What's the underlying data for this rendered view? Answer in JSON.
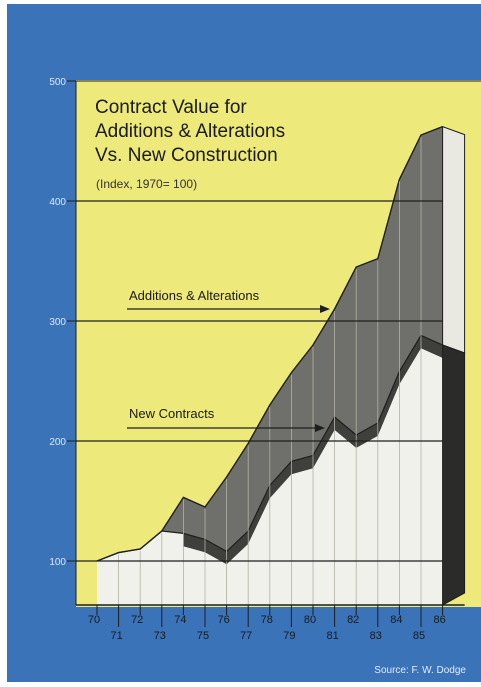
{
  "chart_data": {
    "type": "area",
    "title": "Contract Value for Additions & Alterations Vs. New Construction",
    "title_lines": [
      "Contract Value for",
      "Additions & Alterations",
      "Vs. New Construction"
    ],
    "subtitle": "(Index, 1970= 100)",
    "source": "Source: F. W. Dodge",
    "y_ticks": [
      "100",
      "200",
      "300",
      "400",
      "500"
    ],
    "ylim": [
      75,
      500
    ],
    "x_labels_top": [
      "70",
      "72",
      "74",
      "76",
      "78",
      "80",
      "82",
      "84",
      "86"
    ],
    "x_labels_bottom": [
      "71",
      "73",
      "75",
      "77",
      "79",
      "81",
      "83",
      "85"
    ],
    "x": [
      70,
      71,
      72,
      73,
      74,
      75,
      76,
      77,
      78,
      79,
      80,
      81,
      82,
      83,
      84,
      85,
      86
    ],
    "series": [
      {
        "name": "Additions & Alterations",
        "values": [
          100,
          107,
          110,
          125,
          153,
          145,
          170,
          198,
          230,
          257,
          280,
          310,
          345,
          352,
          418,
          455,
          462
        ]
      },
      {
        "name": "New Contracts",
        "values": [
          100,
          107,
          110,
          125,
          123,
          118,
          108,
          125,
          163,
          183,
          188,
          220,
          205,
          215,
          258,
          288,
          280
        ]
      }
    ],
    "annotations": [
      {
        "text": "Additions & Alterations",
        "points_to": "Additions & Alterations"
      },
      {
        "text": "New Contracts",
        "points_to": "New Contracts"
      }
    ],
    "colors": {
      "background": "#3a73b8",
      "plot": "#ede97a",
      "additions": "#6f6f6c",
      "new_contracts": "#f1f1ec",
      "shadow": "#2b2b29",
      "stripe": "#b3b2a6"
    }
  }
}
